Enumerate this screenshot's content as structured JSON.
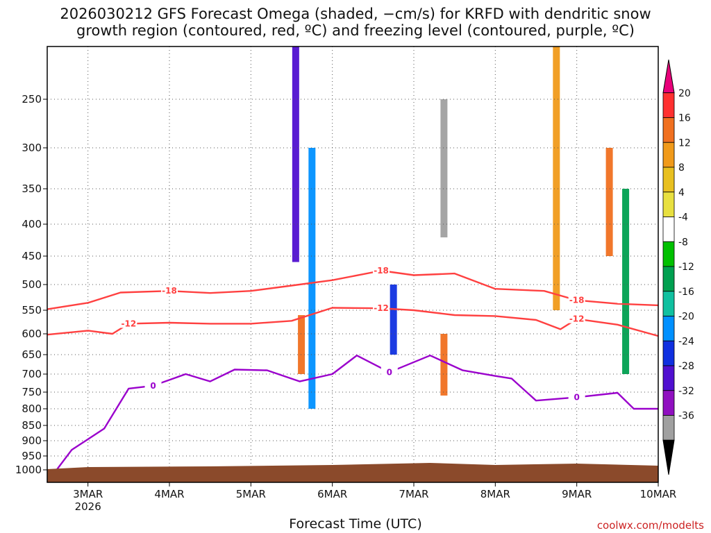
{
  "title": "2026030212 GFS Forecast Omega (shaded, −cm/s) for KRFD with dendritic snow\ngrowth region (contoured, red, ºC) and freezing level (contoured, purple, ºC)",
  "credit": "coolwx.com/modelts",
  "chart_data": {
    "type": "heatmap",
    "xlabel": "Forecast Time (UTC)",
    "ylabel": "",
    "x_ticks": [
      "3MAR",
      "4MAR",
      "5MAR",
      "6MAR",
      "7MAR",
      "8MAR",
      "9MAR",
      "10MAR"
    ],
    "x_year_label": "2026",
    "y_ticks": [
      250,
      300,
      350,
      400,
      450,
      500,
      550,
      600,
      650,
      700,
      750,
      800,
      850,
      900,
      950,
      1000
    ],
    "xlim_days": [
      2.5,
      10.0
    ],
    "ylim_hpa": [
      200,
      1013
    ],
    "grid": true,
    "colorbar": {
      "ticks": [
        20,
        16,
        12,
        8,
        4,
        -4,
        -8,
        -12,
        -16,
        -20,
        -24,
        -28,
        -32,
        -36
      ],
      "colors": [
        "#e8007a",
        "#ff3030",
        "#f07020",
        "#f09a1a",
        "#e8c020",
        "#e8e040",
        "#ffffff",
        "#00c000",
        "#00a050",
        "#10c0a0",
        "#0090ff",
        "#1030e0",
        "#5010d0",
        "#9010c0",
        "#a0a0a0",
        "#000000"
      ]
    },
    "contours": [
      {
        "label": "-18",
        "color": "#ff4040",
        "points": [
          [
            2.5,
            548
          ],
          [
            3.0,
            535
          ],
          [
            3.4,
            515
          ],
          [
            4.0,
            512
          ],
          [
            4.5,
            516
          ],
          [
            5.0,
            512
          ],
          [
            5.5,
            502
          ],
          [
            6.0,
            492
          ],
          [
            6.6,
            475
          ],
          [
            7.0,
            483
          ],
          [
            7.5,
            480
          ],
          [
            8.0,
            508
          ],
          [
            8.6,
            512
          ],
          [
            9.0,
            530
          ],
          [
            9.5,
            537
          ],
          [
            10.0,
            540
          ]
        ]
      },
      {
        "label": "-12",
        "color": "#ff4040",
        "points": [
          [
            2.5,
            602
          ],
          [
            3.0,
            593
          ],
          [
            3.3,
            600
          ],
          [
            3.5,
            578
          ],
          [
            4.0,
            576
          ],
          [
            4.5,
            578
          ],
          [
            5.0,
            578
          ],
          [
            5.5,
            572
          ],
          [
            6.0,
            545
          ],
          [
            6.6,
            546
          ],
          [
            7.0,
            550
          ],
          [
            7.5,
            560
          ],
          [
            8.0,
            562
          ],
          [
            8.5,
            570
          ],
          [
            8.8,
            590
          ],
          [
            9.0,
            568
          ],
          [
            9.5,
            580
          ],
          [
            10.0,
            605
          ]
        ]
      },
      {
        "label": "0",
        "color": "#9a00cc",
        "points": [
          [
            2.5,
            1013
          ],
          [
            2.8,
            930
          ],
          [
            3.2,
            860
          ],
          [
            3.5,
            740
          ],
          [
            3.8,
            732
          ],
          [
            4.2,
            700
          ],
          [
            4.5,
            720
          ],
          [
            4.8,
            688
          ],
          [
            5.2,
            690
          ],
          [
            5.6,
            720
          ],
          [
            6.0,
            700
          ],
          [
            6.3,
            652
          ],
          [
            6.7,
            695
          ],
          [
            7.2,
            652
          ],
          [
            7.6,
            690
          ],
          [
            8.0,
            705
          ],
          [
            8.2,
            712
          ],
          [
            8.5,
            775
          ],
          [
            9.0,
            765
          ],
          [
            9.5,
            752
          ],
          [
            9.7,
            800
          ],
          [
            10.0,
            800
          ]
        ]
      }
    ],
    "cells": [
      {
        "x": 5.55,
        "p0": 200,
        "p1": 460,
        "value": -28
      },
      {
        "x": 5.75,
        "p0": 300,
        "p1": 800,
        "value": -20
      },
      {
        "x": 6.75,
        "p0": 500,
        "p1": 650,
        "value": -24
      },
      {
        "x": 7.37,
        "p0": 250,
        "p1": 420,
        "value": -36
      },
      {
        "x": 7.37,
        "p0": 600,
        "p1": 760,
        "value": 16
      },
      {
        "x": 5.62,
        "p0": 560,
        "p1": 700,
        "value": 16
      },
      {
        "x": 8.75,
        "p0": 200,
        "p1": 550,
        "value": 12
      },
      {
        "x": 9.4,
        "p0": 300,
        "p1": 450,
        "value": 16
      },
      {
        "x": 9.6,
        "p0": 350,
        "p1": 700,
        "value": -12
      }
    ]
  }
}
